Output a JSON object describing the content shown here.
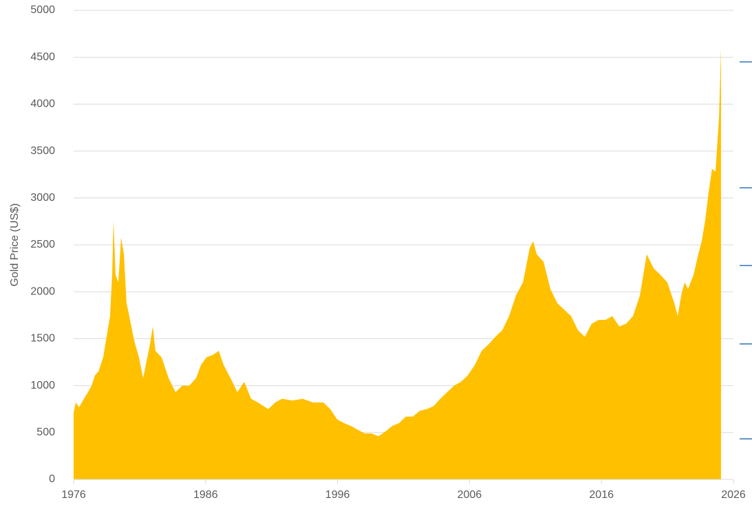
{
  "chart_data": {
    "type": "area",
    "y_label": "Gold Price (US$)",
    "color": "#ffc000",
    "grid": true,
    "xlim": [
      1976,
      2026
    ],
    "xticks": [
      1976,
      1986,
      1996,
      2006,
      2016,
      2026
    ],
    "ylim": [
      0,
      5000
    ],
    "yticks": [
      0,
      500,
      1000,
      1500,
      2000,
      2500,
      3000,
      3500,
      4000,
      4500,
      5000
    ],
    "x": [
      1976.0,
      1976.16,
      1976.42,
      1976.78,
      1977.09,
      1977.36,
      1977.62,
      1977.88,
      1978.24,
      1978.5,
      1978.76,
      1978.92,
      1979.02,
      1979.18,
      1979.39,
      1979.6,
      1979.81,
      1980.01,
      1980.22,
      1980.59,
      1980.95,
      1981.27,
      1981.47,
      1981.79,
      1982.0,
      1982.2,
      1982.67,
      1983.2,
      1983.72,
      1984.24,
      1984.76,
      1985.28,
      1985.65,
      1986.06,
      1986.58,
      1987.0,
      1987.37,
      1987.89,
      1988.41,
      1988.93,
      1989.45,
      1989.97,
      1990.75,
      1991.28,
      1991.8,
      1992.58,
      1993.36,
      1994.14,
      1994.93,
      1995.45,
      1995.97,
      1996.49,
      1997.01,
      1997.53,
      1998.05,
      1998.58,
      1999.1,
      1999.62,
      2000.14,
      2000.66,
      2001.18,
      2001.7,
      2002.23,
      2002.75,
      2003.27,
      2003.79,
      2004.31,
      2004.83,
      2005.35,
      2005.87,
      2006.4,
      2006.92,
      2007.44,
      2007.96,
      2008.48,
      2009.0,
      2009.52,
      2010.05,
      2010.57,
      2010.83,
      2011.09,
      2011.61,
      2012.13,
      2012.65,
      2013.17,
      2013.7,
      2014.22,
      2014.74,
      2015.26,
      2015.78,
      2016.3,
      2016.82,
      2017.35,
      2017.87,
      2018.39,
      2018.91,
      2019.43,
      2019.95,
      2020.47,
      2020.99,
      2021.52,
      2021.78,
      2022.04,
      2022.3,
      2022.56,
      2022.98,
      2023.34,
      2023.6,
      2023.86,
      2024.12,
      2024.38,
      2024.64,
      2024.91,
      2025.06
    ],
    "values": [
      710,
      820,
      770,
      860,
      930,
      1000,
      1110,
      1150,
      1300,
      1520,
      1740,
      2180,
      2760,
      2180,
      2100,
      2580,
      2400,
      1880,
      1740,
      1480,
      1300,
      1080,
      1220,
      1440,
      1630,
      1370,
      1300,
      1080,
      930,
      1000,
      1000,
      1080,
      1220,
      1300,
      1330,
      1370,
      1220,
      1080,
      930,
      1040,
      860,
      820,
      750,
      820,
      860,
      840,
      860,
      820,
      820,
      750,
      640,
      600,
      570,
      530,
      490,
      490,
      460,
      510,
      570,
      600,
      670,
      670,
      730,
      750,
      780,
      860,
      930,
      1000,
      1040,
      1110,
      1220,
      1370,
      1440,
      1520,
      1590,
      1740,
      1960,
      2100,
      2470,
      2540,
      2400,
      2320,
      2030,
      1880,
      1810,
      1740,
      1590,
      1520,
      1660,
      1700,
      1700,
      1740,
      1630,
      1660,
      1740,
      1960,
      2400,
      2250,
      2180,
      2100,
      1880,
      1740,
      1960,
      2100,
      2030,
      2180,
      2400,
      2540,
      2760,
      3060,
      3310,
      3280,
      3860,
      4600
    ]
  }
}
